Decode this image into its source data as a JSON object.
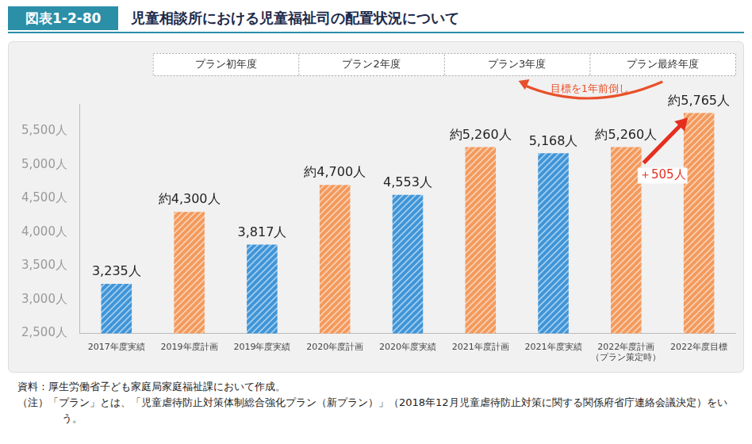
{
  "chart_data": {
    "type": "bar",
    "figure_label": "図表1-2-80",
    "title": "児童相談所における児童福祉司の配置状況について",
    "categories": [
      "2017年度実績",
      "2019年度計画",
      "2019年度実績",
      "2020年度計画",
      "2020年度実績",
      "2021年度計画",
      "2021年度実績",
      [
        "2022年度計画",
        "（プラン策定時）"
      ],
      "2022年度目標"
    ],
    "values": [
      3235,
      4300,
      3817,
      4700,
      4553,
      5260,
      5168,
      5260,
      5765
    ],
    "value_labels": [
      "3,235人",
      "約4,300人",
      "3,817人",
      "約4,700人",
      "4,553人",
      "約5,260人",
      "5,168人",
      "約5,260人",
      "約5,765人"
    ],
    "colors": [
      "#3f95d8",
      "#f39a5c",
      "#3f95d8",
      "#f39a5c",
      "#3f95d8",
      "#f39a5c",
      "#3f95d8",
      "#f39a5c",
      "#f39a5c"
    ],
    "data_labels": true,
    "grid": false,
    "ylim": [
      2500,
      5900
    ],
    "yticks": [
      {
        "value": 2500,
        "label": "2,500人"
      },
      {
        "value": 3000,
        "label": "3,000人"
      },
      {
        "value": 3500,
        "label": "3,500人"
      },
      {
        "value": 4000,
        "label": "4,000人"
      },
      {
        "value": 4500,
        "label": "4,500人"
      },
      {
        "value": 5000,
        "label": "5,000人"
      },
      {
        "value": 5500,
        "label": "5,500人"
      }
    ],
    "plan_periods": [
      {
        "label": "プラン初年度",
        "first": 1,
        "last": 2
      },
      {
        "label": "プラン2年度",
        "first": 3,
        "last": 4
      },
      {
        "label": "プラン3年度",
        "first": 5,
        "last": 6
      },
      {
        "label": "プラン最終年度",
        "first": 7,
        "last": 8
      }
    ],
    "annotations": [
      {
        "text": "目標を1年前倒し",
        "type": "curved_arrow",
        "from_period": 3,
        "to_period": 2,
        "color": "#e8502a"
      },
      {
        "text": "＋505人",
        "type": "arrow",
        "from": 7,
        "to": 8,
        "color": "#e52f1f"
      }
    ],
    "source": "資料：厚生労働省子ども家庭局家庭福祉課において作成。",
    "note": "（注）「プラン」とは、「児童虐待防止対策体制総合強化プラン（新プラン）」（2018年12月児童虐待防止対策に関する関係府省庁連絡会議決定）をいう。"
  }
}
